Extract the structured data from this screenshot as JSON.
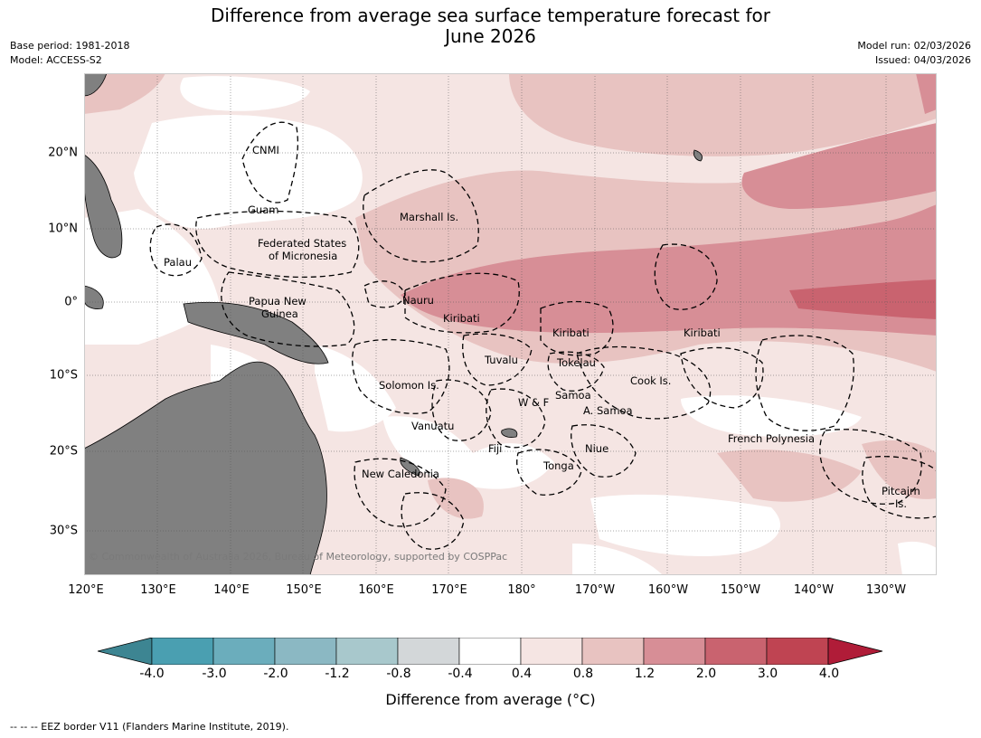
{
  "title_line1": "Difference from average sea surface temperature forecast for",
  "title_line2": "June 2026",
  "meta_left": {
    "base_period": "Base period: 1981-2018",
    "model": "Model: ACCESS-S2"
  },
  "meta_right": {
    "model_run": "Model run: 02/03/2026",
    "issued": "Issued: 04/03/2026"
  },
  "lon_labels": [
    "120°E",
    "130°E",
    "140°E",
    "150°E",
    "160°E",
    "170°E",
    "180°",
    "170°W",
    "160°W",
    "150°W",
    "140°W",
    "130°W"
  ],
  "lat_labels": [
    "20°N",
    "10°N",
    "0°",
    "10°S",
    "20°S",
    "30°S"
  ],
  "places": [
    "CNMI",
    "Guam",
    "Marshall Is.",
    "Federated States",
    "of Micronesia",
    "Palau",
    "Papua New",
    "Guinea",
    "Nauru",
    "Kiribati",
    "Kiribati",
    "Kiribati",
    "Tuvalu",
    "Tokelau",
    "Cook Is.",
    "Solomon Is.",
    "W & F",
    "Samoa",
    "A. Samoa",
    "Vanuatu",
    "Fiji",
    "Niue",
    "Tonga",
    "French Polynesia",
    "New Caledonia",
    "Pitcairn",
    "Is."
  ],
  "copyright": "© Commonwealth of Australia 2026, Bureau of Meteorology, supported by COSPPac",
  "colorbar": {
    "ticks": [
      "-4.0",
      "-3.0",
      "-2.0",
      "-1.2",
      "-0.8",
      "-0.4",
      "0.4",
      "0.8",
      "1.2",
      "2.0",
      "3.0",
      "4.0"
    ],
    "colors": [
      "#3d8592",
      "#4a9fb1",
      "#6badbc",
      "#8bb8c3",
      "#a8c8cc",
      "#d3d7d9",
      "#ffffff",
      "#f5e5e3",
      "#e8c3c1",
      "#d78e96",
      "#c9636f",
      "#bf4452",
      "#b01c38"
    ],
    "title": "Difference from average ($^\\circ$C)"
  },
  "footer": "--  --  -- EEZ border V11 (Flanders Marine Institute, 2019).",
  "legend_colors": {
    "land": "#808080",
    "level_04_08": "#f5e5e3",
    "level_08_12": "#e8c3c1",
    "level_12_20": "#d78e96",
    "level_20_30": "#c9636f"
  }
}
